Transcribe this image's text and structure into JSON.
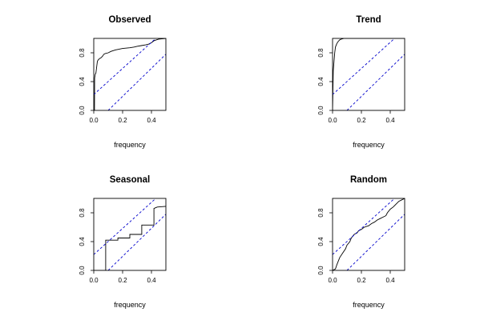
{
  "chart_data": [
    {
      "type": "line",
      "title": "Observed",
      "xlabel": "frequency",
      "ylabel": "",
      "xlim": [
        0,
        0.5
      ],
      "ylim": [
        0,
        1
      ],
      "x_ticks": [
        "0.0",
        "0.2",
        "0.4"
      ],
      "y_ticks": [
        "0.0",
        "0.4",
        "0.8"
      ],
      "grid": false,
      "series": [
        {
          "line": "solid",
          "color": "#000000",
          "x": [
            0,
            0.002,
            0.005,
            0.006,
            0.01,
            0.015,
            0.02,
            0.025,
            0.03,
            0.04,
            0.05,
            0.06,
            0.07,
            0.08,
            0.1,
            0.12,
            0.15,
            0.2,
            0.25,
            0.28,
            0.3,
            0.33,
            0.36,
            0.38,
            0.4,
            0.42,
            0.45,
            0.5
          ],
          "y": [
            0,
            0,
            0,
            0.45,
            0.5,
            0.52,
            0.6,
            0.68,
            0.7,
            0.72,
            0.73,
            0.75,
            0.78,
            0.79,
            0.8,
            0.82,
            0.84,
            0.86,
            0.87,
            0.88,
            0.89,
            0.9,
            0.91,
            0.92,
            0.94,
            0.97,
            0.99,
            1.0
          ]
        },
        {
          "line": "dashed",
          "color": "#0000cc",
          "x": [
            0,
            0.43
          ],
          "y": [
            0.22,
            1.0
          ]
        },
        {
          "line": "dashed",
          "color": "#0000cc",
          "x": [
            0.1,
            0.5
          ],
          "y": [
            0,
            0.78
          ]
        }
      ]
    },
    {
      "type": "line",
      "title": "Trend",
      "xlabel": "frequency",
      "ylabel": "",
      "xlim": [
        0,
        0.5
      ],
      "ylim": [
        0,
        1
      ],
      "x_ticks": [
        "0.0",
        "0.2",
        "0.4"
      ],
      "y_ticks": [
        "0.0",
        "0.4",
        "0.8"
      ],
      "grid": false,
      "series": [
        {
          "line": "solid",
          "color": "#000000",
          "x": [
            0,
            0.005,
            0.01,
            0.015,
            0.02,
            0.03,
            0.04,
            0.05,
            0.06,
            0.08,
            0.1,
            0.5
          ],
          "y": [
            0,
            0.55,
            0.68,
            0.8,
            0.88,
            0.93,
            0.96,
            0.98,
            0.99,
            1.0,
            1.0,
            1.0
          ]
        },
        {
          "line": "dashed",
          "color": "#0000cc",
          "x": [
            0,
            0.43
          ],
          "y": [
            0.22,
            1.0
          ]
        },
        {
          "line": "dashed",
          "color": "#0000cc",
          "x": [
            0.1,
            0.5
          ],
          "y": [
            0,
            0.78
          ]
        }
      ]
    },
    {
      "type": "line",
      "title": "Seasonal",
      "xlabel": "frequency",
      "ylabel": "",
      "xlim": [
        0,
        0.5
      ],
      "ylim": [
        0,
        1
      ],
      "x_ticks": [
        "0.0",
        "0.2",
        "0.4"
      ],
      "y_ticks": [
        "0.0",
        "0.4",
        "0.8"
      ],
      "grid": false,
      "series": [
        {
          "line": "solid",
          "color": "#000000",
          "x": [
            0,
            0.083,
            0.083,
            0.1,
            0.167,
            0.167,
            0.25,
            0.25,
            0.333,
            0.333,
            0.417,
            0.417,
            0.44,
            0.5
          ],
          "y": [
            0,
            0,
            0.42,
            0.42,
            0.42,
            0.45,
            0.45,
            0.5,
            0.5,
            0.63,
            0.63,
            0.86,
            0.88,
            0.89
          ]
        },
        {
          "line": "dashed",
          "color": "#0000cc",
          "x": [
            0,
            0.43
          ],
          "y": [
            0.22,
            1.0
          ]
        },
        {
          "line": "dashed",
          "color": "#0000cc",
          "x": [
            0.1,
            0.5
          ],
          "y": [
            0,
            0.78
          ]
        }
      ]
    },
    {
      "type": "line",
      "title": "Random",
      "xlabel": "frequency",
      "ylabel": "",
      "xlim": [
        0,
        0.5
      ],
      "ylim": [
        0,
        1
      ],
      "x_ticks": [
        "0.0",
        "0.2",
        "0.4"
      ],
      "y_ticks": [
        "0.0",
        "0.4",
        "0.8"
      ],
      "grid": false,
      "series": [
        {
          "line": "solid",
          "color": "#000000",
          "x": [
            0,
            0.02,
            0.03,
            0.05,
            0.07,
            0.09,
            0.1,
            0.12,
            0.13,
            0.15,
            0.17,
            0.18,
            0.2,
            0.22,
            0.25,
            0.27,
            0.29,
            0.31,
            0.33,
            0.35,
            0.37,
            0.38,
            0.4,
            0.42,
            0.44,
            0.46,
            0.48,
            0.5
          ],
          "y": [
            0,
            0.02,
            0.08,
            0.18,
            0.24,
            0.3,
            0.35,
            0.4,
            0.45,
            0.5,
            0.52,
            0.55,
            0.57,
            0.6,
            0.62,
            0.65,
            0.67,
            0.7,
            0.72,
            0.74,
            0.76,
            0.8,
            0.85,
            0.88,
            0.92,
            0.96,
            0.98,
            1.0
          ]
        },
        {
          "line": "dashed",
          "color": "#0000cc",
          "x": [
            0,
            0.43
          ],
          "y": [
            0.22,
            1.0
          ]
        },
        {
          "line": "dashed",
          "color": "#0000cc",
          "x": [
            0.1,
            0.5
          ],
          "y": [
            0,
            0.78
          ]
        }
      ]
    }
  ]
}
